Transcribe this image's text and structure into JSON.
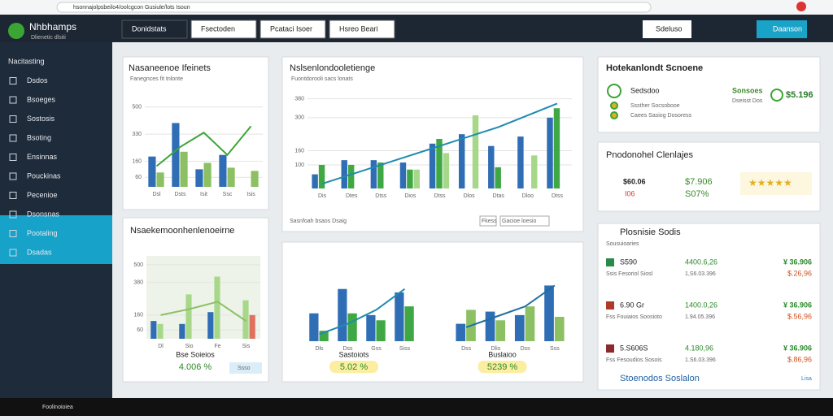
{
  "browser": {
    "url": "hsonnajolpsbeilo4/oolcgcon Gusiule/lots Isoun"
  },
  "header": {
    "logo": "Nhbhamps",
    "logo_sub": "Dlienetic dlsiti",
    "tabs": [
      "Donidstats",
      "Fsectoden",
      "Pcataci Isoer",
      "Hsreo Beari"
    ],
    "buttons": [
      "Sdeluso",
      "Daanson"
    ]
  },
  "sidebar": {
    "items": [
      "Nacitasting",
      "Dsdos",
      "Bsoeges",
      "Sostosis",
      "Bsoting",
      "Ensinnas",
      "Pouckinas",
      "Pecenioe",
      "Dsonsnas",
      "Pootaling",
      "Dsadas"
    ]
  },
  "charts": [
    {
      "title": "Nasaneenoe Ifeinets",
      "subtitle": "Fanegnces fit tnlonte",
      "yticks": [
        60,
        160,
        330,
        500
      ],
      "ylim": [
        0,
        560
      ],
      "categories": [
        "Dsl",
        "Dsts",
        "Isit",
        "Ssc",
        "Isis"
      ],
      "bars": [
        {
          "color": "#2f6db5",
          "values": [
            190,
            400,
            110,
            200,
            0
          ]
        },
        {
          "color": "#8cc063",
          "values": [
            90,
            220,
            150,
            120,
            100
          ]
        }
      ],
      "line": {
        "color": "#3aa535",
        "values": [
          130,
          250,
          340,
          200,
          380
        ]
      }
    },
    {
      "title": "Nslsenlondooletienge",
      "subtitle": "Fuontdorooli sacs lonats",
      "yticks": [
        100,
        160,
        300,
        380
      ],
      "ylim": [
        0,
        420
      ],
      "categories": [
        "Dis",
        "Dtes",
        "Dtss",
        "Dios",
        "Dtss",
        "Dlos",
        "Dtas",
        "Dloo",
        "Dtss"
      ],
      "bars": [
        {
          "color": "#2f6db5",
          "values": [
            60,
            120,
            120,
            110,
            190,
            230,
            180,
            220,
            300
          ]
        },
        {
          "color": "#3fa845",
          "values": [
            100,
            100,
            110,
            80,
            210,
            0,
            90,
            0,
            340
          ]
        },
        {
          "color": "#a7d88a",
          "values": [
            0,
            0,
            0,
            80,
            150,
            310,
            0,
            140,
            0
          ]
        }
      ],
      "line": {
        "color": "#1f8bb0",
        "values": [
          20,
          60,
          100,
          140,
          180,
          220,
          260,
          310,
          360
        ]
      },
      "legend": "Sasnfoah bsaos Dsaig",
      "buttons": [
        "Fkess",
        "Gacioe loesio"
      ]
    },
    {
      "title": "Nsaekemoonhenlenoeirne",
      "yticks": [
        60,
        160,
        380,
        500
      ],
      "ylim": [
        0,
        560
      ],
      "categories": [
        "Dl",
        "Sio",
        "Fe",
        "Sis"
      ],
      "bars": [
        {
          "color": "#2f6db5",
          "values": [
            120,
            100,
            180,
            0
          ]
        },
        {
          "color": "#a7d88a",
          "values": [
            100,
            300,
            420,
            260
          ]
        },
        {
          "color": "#e07060",
          "values": [
            0,
            0,
            0,
            160
          ]
        }
      ],
      "line": {
        "color": "#8cc063",
        "values": [
          160,
          200,
          250,
          120
        ]
      },
      "footer": "Bse Soieios",
      "value": "4.006 %",
      "button": "Ssso"
    },
    {
      "categories": [
        "Dls",
        "Dss",
        "Gss",
        "Siss"
      ],
      "ylim": [
        0,
        420
      ],
      "bars": [
        {
          "color": "#2f6db5",
          "values": [
            160,
            300,
            150,
            280
          ]
        },
        {
          "color": "#3fa845",
          "values": [
            60,
            160,
            120,
            200
          ]
        }
      ],
      "line": {
        "color": "#1f8bb0",
        "values": [
          40,
          100,
          180,
          300
        ]
      },
      "footer": "Sastoiots",
      "value": "5.02 %"
    },
    {
      "categories": [
        "Dss",
        "Dlis",
        "Dss",
        "Sss"
      ],
      "ylim": [
        0,
        420
      ],
      "bars": [
        {
          "color": "#2f6db5",
          "values": [
            100,
            170,
            150,
            320
          ]
        },
        {
          "color": "#8cc063",
          "values": [
            180,
            120,
            200,
            140
          ]
        }
      ],
      "line": {
        "color": "#1f6fa0",
        "values": [
          80,
          140,
          200,
          320
        ]
      },
      "footer": "Buslaioo",
      "value": "5239 %"
    }
  ],
  "cards": [
    {
      "title": "Hotekanlondt Scnoene",
      "rows": [
        "Sedsdoo",
        "Sssther Socsobooe",
        "Caees Sasiog Dosoress"
      ],
      "side": "Sonsoes",
      "side_sub": "Dseisst Dos",
      "value": "$5.196"
    },
    {
      "title": "Pnodonohel Clenlajes",
      "a": "$60.06",
      "b": "I06",
      "c": "$7.906",
      "d": "S07%"
    },
    {
      "title": "Plosnisie Sodis",
      "subtitle": "Sousuioaries",
      "rows": [
        {
          "code": "S590",
          "desc": "Ssis Fesoriol Siosl",
          "mid": "4400.6,26",
          "mid2": "1,S6.03.396",
          "right": "¥ 36.906",
          "right2": "$.26,96"
        },
        {
          "code": "6.90 Gr",
          "desc": "Fss Fouiaios Soosioto",
          "mid": "1400.0,26",
          "mid2": "1.94.05.396",
          "right": "¥ 36.906",
          "right2": "$.56,96"
        },
        {
          "code": "5.S606S",
          "desc": "Fss Fesoudios Sosois",
          "mid": "4.180,96",
          "mid2": "1.S6.03.396",
          "right": "¥ 36.906",
          "right2": "$.86,96"
        }
      ],
      "footer": "Stoenodos Soslalon",
      "link": "Lisa"
    }
  ],
  "taskbar": {
    "search": "Foolinoioiea"
  }
}
